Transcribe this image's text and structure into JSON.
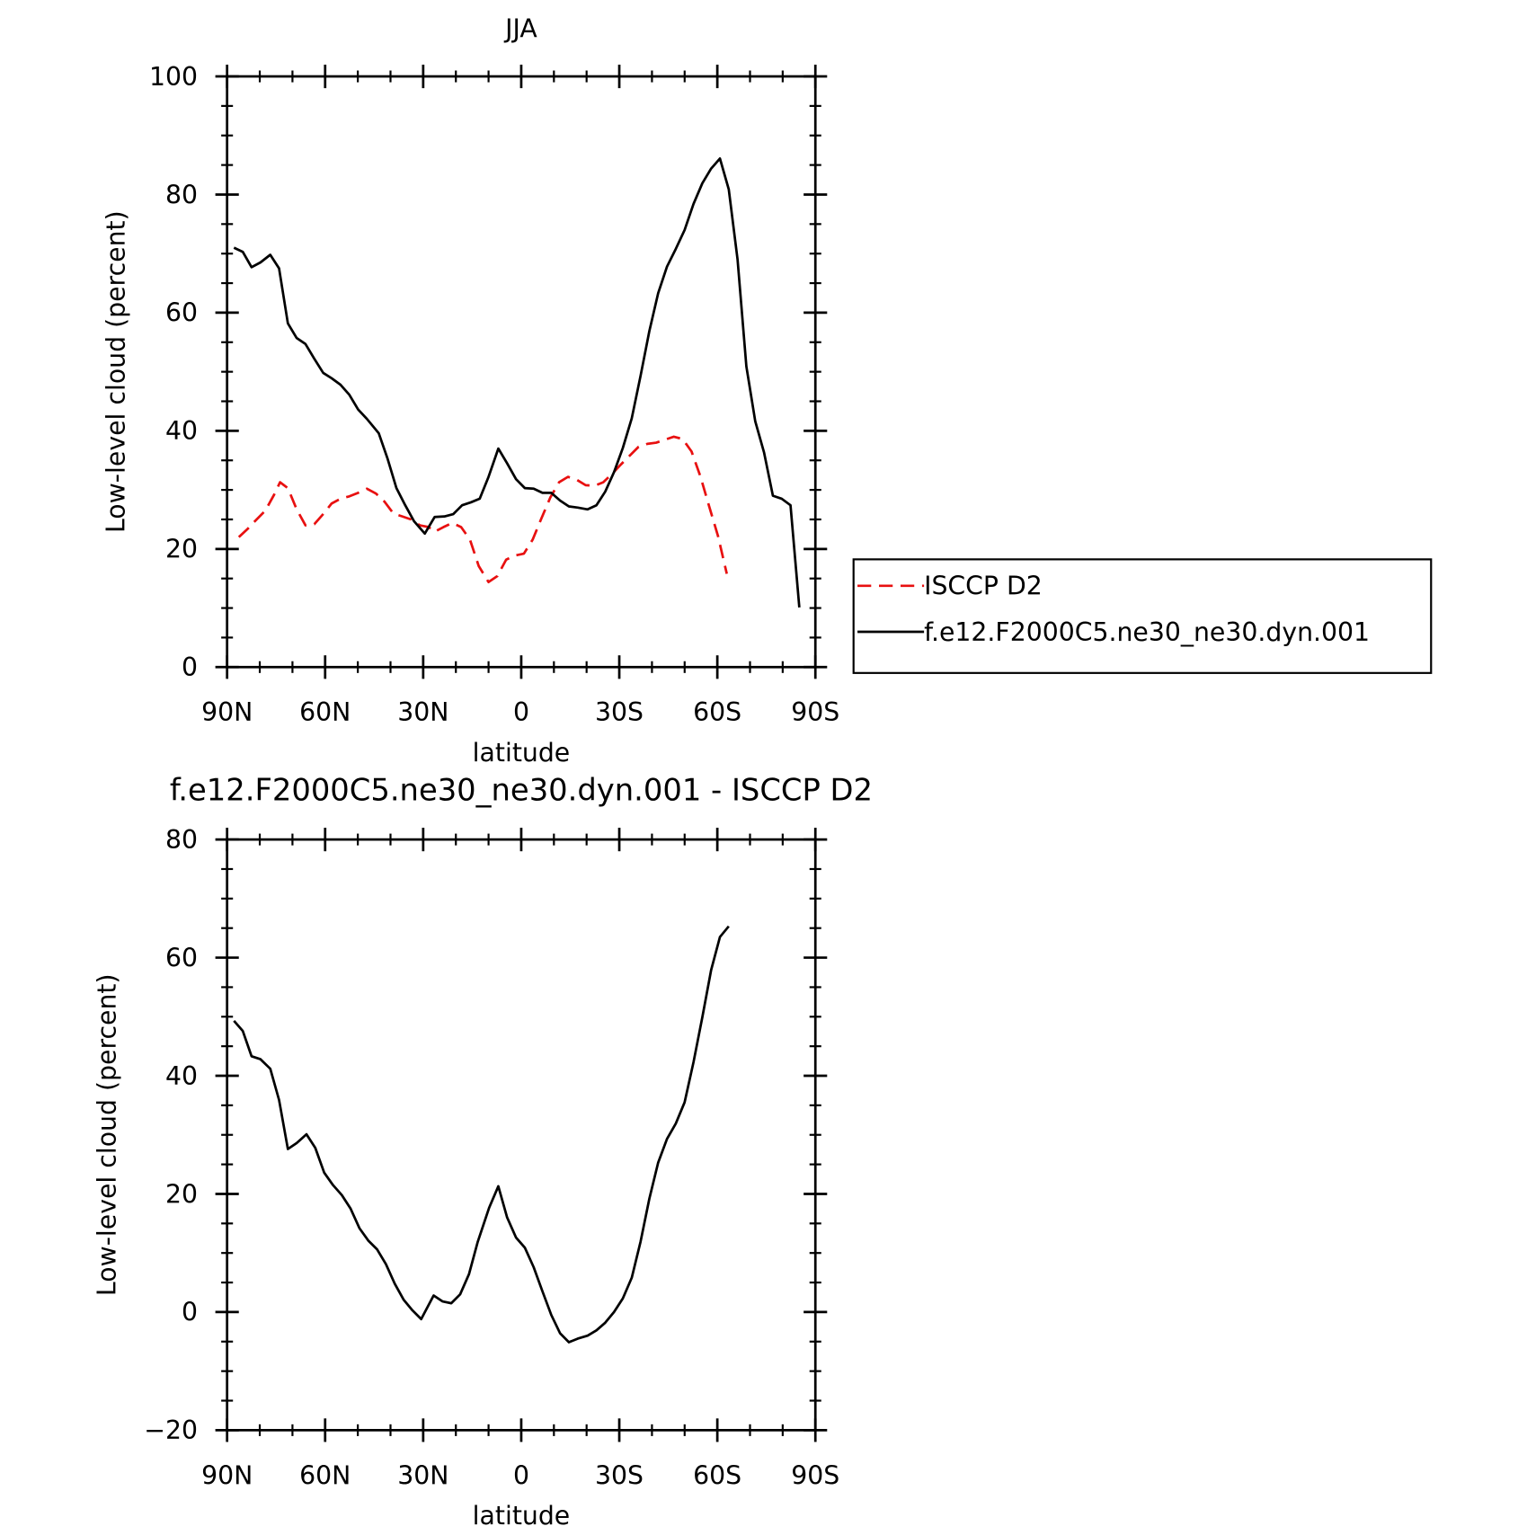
{
  "chart_data": [
    {
      "type": "line",
      "title": "JJA",
      "ylabel": "Low-level cloud (percent)",
      "xlabel": "latitude",
      "xlim": [
        90,
        -90
      ],
      "xticks": [
        {
          "value": 90,
          "label": "90N"
        },
        {
          "value": 60,
          "label": "60N"
        },
        {
          "value": 30,
          "label": "30N"
        },
        0,
        {
          "value": -30,
          "label": "30S"
        },
        {
          "value": -60,
          "label": "60S"
        },
        {
          "value": -90,
          "label": "90S"
        }
      ],
      "xminorticks": [
        80,
        70,
        50,
        40,
        20,
        10,
        -10,
        -20,
        -40,
        -50,
        -70,
        -80
      ],
      "ylim": [
        0,
        100
      ],
      "yticks": [
        0,
        20,
        40,
        60,
        80,
        100
      ],
      "yminorticks": [
        5,
        10,
        15,
        25,
        30,
        35,
        45,
        50,
        55,
        65,
        70,
        75,
        85,
        90,
        95
      ],
      "legend": "right",
      "series": [
        {
          "name": "ISCCP D2",
          "color": "#e81010",
          "dash": true,
          "x": [
            86.4,
            83.7,
            81.0,
            78.3,
            75.6,
            73.8,
            71.4,
            68.7,
            66.0,
            63.3,
            60.6,
            58.0,
            55.3,
            52.6,
            49.9,
            47.2,
            44.5,
            41.8,
            39.1,
            36.4,
            33.7,
            31.0,
            28.3,
            26.5,
            23.8,
            21.1,
            18.4,
            15.7,
            13.0,
            10.0,
            7.3,
            4.6,
            1.8,
            -0.8,
            -3.5,
            -6.2,
            -8.9,
            -11.6,
            -14.3,
            -17.0,
            -19.7,
            -22.4,
            -25.1,
            -27.8,
            -30.5,
            -33.2,
            -35.9,
            -38.6,
            -41.3,
            -44.0,
            -46.7,
            -49.4,
            -52.1,
            -54.8,
            -57.5,
            -60.2,
            -62.9
          ],
          "values": [
            22,
            23.4,
            25,
            26.5,
            29.2,
            31.3,
            30.3,
            26.7,
            24,
            24.2,
            25.9,
            27.7,
            28.5,
            28.9,
            29.5,
            30.2,
            29.4,
            28,
            26,
            25.5,
            25,
            24,
            23.7,
            22.9,
            23.7,
            24.4,
            23.7,
            21.6,
            17.1,
            14.4,
            15.4,
            18.2,
            18.9,
            19.2,
            21.6,
            25.2,
            28.7,
            31.3,
            32.2,
            31.7,
            30.8,
            30.7,
            31.3,
            32.7,
            34.3,
            35.8,
            37.3,
            37.8,
            38,
            38.5,
            39,
            38.6,
            36.5,
            32.3,
            27.2,
            22.2,
            15.8
          ]
        },
        {
          "name": "f.e12.F2000C5.ne30_ne30.dyn.001",
          "color": "#000000",
          "dash": false,
          "x": [
            87.9,
            85.2,
            82.5,
            79.8,
            76.8,
            74.1,
            71.4,
            68.7,
            66.0,
            63.3,
            60.6,
            58.0,
            55.3,
            52.6,
            49.9,
            47.2,
            43.6,
            40.9,
            38.2,
            35.5,
            32.8,
            29.5,
            26.5,
            23.5,
            20.8,
            18.1,
            15.4,
            12.7,
            10.0,
            7.0,
            4.3,
            1.6,
            -1.1,
            -3.8,
            -6.5,
            -9.2,
            -11.9,
            -14.6,
            -17.3,
            -20.3,
            -23.0,
            -25.7,
            -28.4,
            -31.1,
            -33.8,
            -36.5,
            -39.2,
            -41.9,
            -44.6,
            -47.3,
            -50.0,
            -52.7,
            -55.4,
            -58.1,
            -60.8,
            -63.5,
            -66.2,
            -68.9,
            -71.6,
            -74.3,
            -77.0,
            -79.7,
            -82.4,
            -85.1
          ],
          "values": [
            71,
            70.3,
            67.7,
            68.5,
            69.8,
            67.5,
            58.2,
            55.7,
            54.7,
            52.2,
            49.8,
            48.9,
            47.8,
            46.1,
            43.6,
            42,
            39.6,
            35.3,
            30.3,
            27.4,
            24.7,
            22.6,
            25.4,
            25.5,
            25.9,
            27.4,
            27.9,
            28.5,
            32.2,
            37,
            34.5,
            31.8,
            30.3,
            30.2,
            29.5,
            29.5,
            28.2,
            27.2,
            27,
            26.7,
            27.4,
            29.7,
            33,
            37.1,
            42.1,
            49.3,
            56.9,
            63.3,
            67.8,
            70.8,
            74,
            78.4,
            81.9,
            84.4,
            86.1,
            80.9,
            69,
            50.9,
            41.6,
            36.3,
            29,
            28.5,
            27.4,
            10.1
          ]
        }
      ]
    },
    {
      "type": "line",
      "title": "f.e12.F2000C5.ne30_ne30.dyn.001 - ISCCP D2",
      "ylabel": "Low-level cloud (percent)",
      "xlabel": "latitude",
      "xlim": [
        90,
        -90
      ],
      "xticks": [
        {
          "value": 90,
          "label": "90N"
        },
        {
          "value": 60,
          "label": "60N"
        },
        {
          "value": 30,
          "label": "30N"
        },
        0,
        {
          "value": -30,
          "label": "30S"
        },
        {
          "value": -60,
          "label": "60S"
        },
        {
          "value": -90,
          "label": "90S"
        }
      ],
      "xminorticks": [
        80,
        70,
        50,
        40,
        20,
        10,
        -10,
        -20,
        -40,
        -50,
        -70,
        -80
      ],
      "ylim": [
        -20,
        80
      ],
      "yticks": [
        -20,
        0,
        20,
        40,
        60,
        80
      ],
      "yminorticks": [
        -15,
        -10,
        -5,
        5,
        10,
        15,
        25,
        30,
        35,
        45,
        50,
        55,
        65,
        70,
        75
      ],
      "series": [
        {
          "color": "#000000",
          "dash": false,
          "x": [
            87.9,
            85.2,
            82.5,
            79.8,
            76.8,
            74.1,
            71.4,
            68.7,
            65.7,
            63.0,
            60.3,
            57.6,
            54.9,
            52.2,
            49.5,
            46.8,
            44.1,
            41.4,
            38.7,
            36.0,
            33.3,
            30.6,
            26.8,
            24.1,
            21.4,
            18.7,
            16.0,
            13.3,
            9.8,
            7.0,
            4.3,
            1.6,
            -1.1,
            -3.8,
            -6.5,
            -9.2,
            -11.9,
            -14.6,
            -17.3,
            -20.3,
            -23.0,
            -25.7,
            -28.4,
            -31.1,
            -33.8,
            -36.5,
            -39.2,
            -41.9,
            -44.6,
            -47.3,
            -50.0,
            -52.7,
            -55.4,
            -58.1,
            -60.8,
            -63.5
          ],
          "values": [
            49.3,
            47.6,
            43.3,
            42.8,
            41.2,
            35.9,
            27.6,
            28.6,
            30.1,
            27.8,
            23.6,
            21.5,
            19.8,
            17.5,
            14.2,
            12.1,
            10.6,
            8.1,
            4.8,
            2.1,
            0.3,
            -1.2,
            2.8,
            1.8,
            1.5,
            3,
            6.4,
            11.9,
            17.7,
            21.3,
            16,
            12.6,
            10.9,
            7.6,
            3.5,
            -0.5,
            -3.6,
            -5.1,
            -4.5,
            -4,
            -3.1,
            -1.8,
            0,
            2.3,
            5.8,
            11.9,
            19.2,
            25.3,
            29.3,
            31.9,
            35.5,
            42.3,
            49.9,
            57.9,
            63.5,
            65.3
          ]
        }
      ]
    }
  ]
}
